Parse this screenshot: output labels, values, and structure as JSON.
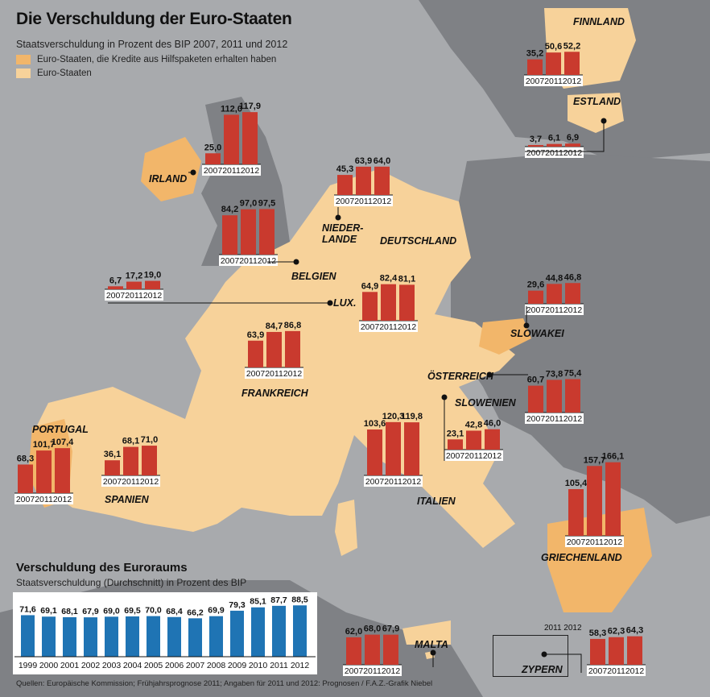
{
  "header": {
    "title": "Die Verschuldung der Euro-Staaten",
    "subtitle": "Staatsverschuldung in Prozent des BIP 2007, 2011 und 2012",
    "legend": [
      {
        "label": "Euro-Staaten, die Kredite aus Hilfspaketen erhalten haben",
        "color": "#f2b66a"
      },
      {
        "label": "Euro-Staaten",
        "color": "#f7d29a"
      }
    ]
  },
  "colors": {
    "bar_country": "#c93a2e",
    "bar_euro": "#1f74b4",
    "sea": "#a8aaad",
    "land": "#7f8185",
    "euro_land": "#f7d29a"
  },
  "euroraum": {
    "title": "Verschuldung des Euroraums",
    "subtitle": "Staatsverschuldung (Durchschnitt) in Prozent des BIP"
  },
  "footer": "Quellen: Europäische Kommission; Frühjahrsprognose 2011; Angaben für 2011 und 2012: Prognosen / F.A.Z.-Grafik Niebel",
  "chart_data": [
    {
      "type": "bar",
      "name": "IRLAND",
      "categories": [
        "2007",
        "2011",
        "2012"
      ],
      "values": [
        25.0,
        112.0,
        117.9
      ],
      "labels": [
        "25,0",
        "112,0",
        "117,9"
      ]
    },
    {
      "type": "bar",
      "name": "NIEDERLANDE",
      "categories": [
        "2007",
        "2011",
        "2012"
      ],
      "values": [
        45.3,
        63.9,
        64.0
      ],
      "labels": [
        "45,3",
        "63,9",
        "64,0"
      ]
    },
    {
      "type": "bar",
      "name": "BELGIEN",
      "categories": [
        "2007",
        "2011",
        "2012"
      ],
      "values": [
        84.2,
        97.0,
        97.5
      ],
      "labels": [
        "84,2",
        "97,0",
        "97,5"
      ]
    },
    {
      "type": "bar",
      "name": "LUX.",
      "categories": [
        "2007",
        "2011",
        "2012"
      ],
      "values": [
        6.7,
        17.2,
        19.0
      ],
      "labels": [
        "6,7",
        "17,2",
        "19,0"
      ]
    },
    {
      "type": "bar",
      "name": "DEUTSCHLAND",
      "categories": [
        "2007",
        "2011",
        "2012"
      ],
      "values": [
        64.9,
        82.4,
        81.1
      ],
      "labels": [
        "64,9",
        "82,4",
        "81,1"
      ]
    },
    {
      "type": "bar",
      "name": "FRANKREICH",
      "categories": [
        "2007",
        "2011",
        "2012"
      ],
      "values": [
        63.9,
        84.7,
        86.8
      ],
      "labels": [
        "63,9",
        "84,7",
        "86,8"
      ]
    },
    {
      "type": "bar",
      "name": "PORTUGAL",
      "categories": [
        "2007",
        "2011",
        "2012"
      ],
      "values": [
        68.3,
        101.7,
        107.4
      ],
      "labels": [
        "68,3",
        "101,7",
        "107,4"
      ]
    },
    {
      "type": "bar",
      "name": "SPANIEN",
      "categories": [
        "2007",
        "2011",
        "2012"
      ],
      "values": [
        36.1,
        68.1,
        71.0
      ],
      "labels": [
        "36,1",
        "68,1",
        "71,0"
      ]
    },
    {
      "type": "bar",
      "name": "ITALIEN",
      "categories": [
        "2007",
        "2011",
        "2012"
      ],
      "values": [
        103.6,
        120.3,
        119.8
      ],
      "labels": [
        "103,6",
        "120,3",
        "119,8"
      ]
    },
    {
      "type": "bar",
      "name": "FINNLAND",
      "categories": [
        "2007",
        "2011",
        "2012"
      ],
      "values": [
        35.2,
        50.6,
        52.2
      ],
      "labels": [
        "35,2",
        "50,6",
        "52,2"
      ]
    },
    {
      "type": "bar",
      "name": "ESTLAND",
      "categories": [
        "2007",
        "2011",
        "2012"
      ],
      "values": [
        3.7,
        6.1,
        6.9
      ],
      "labels": [
        "3,7",
        "6,1",
        "6,9"
      ]
    },
    {
      "type": "bar",
      "name": "SLOWAKEI",
      "categories": [
        "2007",
        "2011",
        "2012"
      ],
      "values": [
        29.6,
        44.8,
        46.8
      ],
      "labels": [
        "29,6",
        "44,8",
        "46,8"
      ]
    },
    {
      "type": "bar",
      "name": "ÖSTERREICH",
      "categories": [
        "2007",
        "2011",
        "2012"
      ],
      "values": [
        60.7,
        73.8,
        75.4
      ],
      "labels": [
        "60,7",
        "73,8",
        "75,4"
      ]
    },
    {
      "type": "bar",
      "name": "SLOWENIEN",
      "categories": [
        "2007",
        "2011",
        "2012"
      ],
      "values": [
        23.1,
        42.8,
        46.0
      ],
      "labels": [
        "23,1",
        "42,8",
        "46,0"
      ]
    },
    {
      "type": "bar",
      "name": "GRIECHENLAND",
      "categories": [
        "2007",
        "2011",
        "2012"
      ],
      "values": [
        105.4,
        157.7,
        166.1
      ],
      "labels": [
        "105,4",
        "157,7",
        "166,1"
      ]
    },
    {
      "type": "bar",
      "name": "MALTA",
      "categories": [
        "2007",
        "2011",
        "2012"
      ],
      "values": [
        62.0,
        68.0,
        67.9
      ],
      "labels": [
        "62,0",
        "68,0",
        "67,9"
      ]
    },
    {
      "type": "bar",
      "name": "ZYPERN",
      "categories": [
        "2007",
        "2011",
        "2012"
      ],
      "values": [
        58.3,
        62.3,
        64.3
      ],
      "labels": [
        "58,3",
        "62,3",
        "64,3"
      ]
    },
    {
      "type": "bar",
      "name": "Verschuldung des Euroraums",
      "categories": [
        "1999",
        "2000",
        "2001",
        "2002",
        "2003",
        "2004",
        "2005",
        "2006",
        "2007",
        "2008",
        "2009",
        "2010",
        "2011",
        "2012"
      ],
      "values": [
        71.6,
        69.1,
        68.1,
        67.9,
        69.0,
        69.5,
        70.0,
        68.4,
        66.2,
        69.9,
        79.3,
        85.1,
        87.7,
        88.5
      ],
      "labels": [
        "71,6",
        "69,1",
        "68,1",
        "67,9",
        "69,0",
        "69,5",
        "70,0",
        "68,4",
        "66,2",
        "69,9",
        "79,3",
        "85,1",
        "87,7",
        "88,5"
      ]
    }
  ],
  "zypern_inset_years": "2011 2012"
}
